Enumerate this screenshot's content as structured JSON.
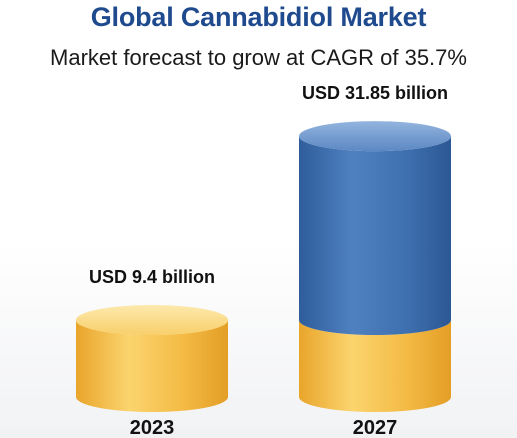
{
  "chart_data": {
    "type": "bar",
    "title": "Global Cannabidiol Market",
    "subtitle": "Market forecast to grow at CAGR of 35.7%",
    "categories": [
      "2023",
      "2027"
    ],
    "values": [
      9.4,
      31.85
    ],
    "value_labels": [
      "USD 9.4 billion",
      "USD 31.85 billion"
    ],
    "base_segment_value": 9.4,
    "unit": "USD billion",
    "colors": {
      "base_yellow": "#f2b63a",
      "base_yellow_light": "#fde29a",
      "top_blue": "#3e6fad",
      "top_blue_light": "#7fa6d6",
      "title_blue": "#1f4b8e"
    },
    "grid": false,
    "legend": "none"
  }
}
